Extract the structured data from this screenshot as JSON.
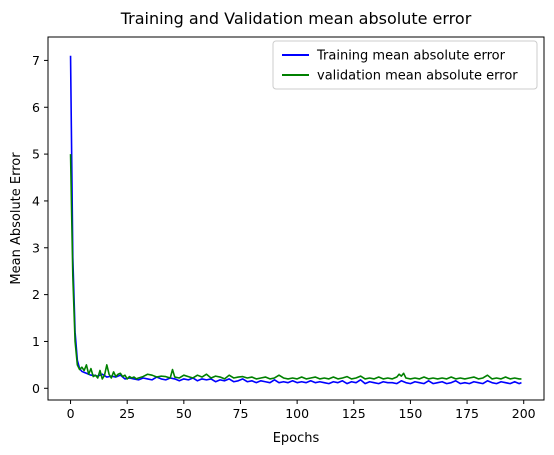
{
  "chart_data": {
    "type": "line",
    "title": "Training and Validation mean absolute error",
    "xlabel": "Epochs",
    "ylabel": "Mean Absolute Error",
    "xlim": [
      -9.95,
      208.95
    ],
    "ylim": [
      -0.25,
      7.5
    ],
    "xticks": [
      0,
      25,
      50,
      75,
      100,
      125,
      150,
      175,
      200
    ],
    "yticks": [
      0,
      1,
      2,
      3,
      4,
      5,
      6,
      7
    ],
    "grid": false,
    "legend": "top-right",
    "series": [
      {
        "name": "Training mean absolute error",
        "color": "#0000ff",
        "x": [
          0,
          1,
          2,
          3,
          4,
          5,
          6,
          7,
          8,
          9,
          10,
          12,
          14,
          16,
          18,
          20,
          22,
          24,
          26,
          28,
          30,
          32,
          34,
          36,
          38,
          40,
          42,
          44,
          46,
          48,
          50,
          52,
          54,
          56,
          58,
          60,
          62,
          64,
          66,
          68,
          70,
          72,
          74,
          76,
          78,
          80,
          82,
          84,
          86,
          88,
          90,
          92,
          94,
          96,
          98,
          100,
          102,
          104,
          106,
          108,
          110,
          112,
          114,
          116,
          118,
          120,
          122,
          124,
          126,
          128,
          130,
          132,
          134,
          136,
          138,
          140,
          142,
          144,
          146,
          148,
          150,
          152,
          154,
          156,
          158,
          160,
          162,
          164,
          166,
          168,
          170,
          172,
          174,
          176,
          178,
          180,
          182,
          184,
          186,
          188,
          190,
          192,
          194,
          196,
          198,
          199
        ],
        "y": [
          7.1,
          2.8,
          1.2,
          0.6,
          0.42,
          0.36,
          0.34,
          0.32,
          0.3,
          0.28,
          0.28,
          0.26,
          0.3,
          0.24,
          0.26,
          0.24,
          0.28,
          0.2,
          0.22,
          0.2,
          0.18,
          0.22,
          0.2,
          0.18,
          0.24,
          0.2,
          0.18,
          0.22,
          0.2,
          0.16,
          0.2,
          0.18,
          0.22,
          0.16,
          0.2,
          0.18,
          0.2,
          0.14,
          0.18,
          0.16,
          0.2,
          0.14,
          0.16,
          0.2,
          0.14,
          0.16,
          0.12,
          0.16,
          0.14,
          0.12,
          0.18,
          0.12,
          0.14,
          0.12,
          0.16,
          0.12,
          0.14,
          0.12,
          0.16,
          0.12,
          0.14,
          0.12,
          0.1,
          0.14,
          0.12,
          0.16,
          0.1,
          0.14,
          0.12,
          0.18,
          0.1,
          0.14,
          0.12,
          0.1,
          0.14,
          0.12,
          0.12,
          0.1,
          0.16,
          0.12,
          0.1,
          0.14,
          0.12,
          0.1,
          0.16,
          0.1,
          0.12,
          0.14,
          0.1,
          0.12,
          0.16,
          0.1,
          0.12,
          0.1,
          0.14,
          0.12,
          0.1,
          0.16,
          0.12,
          0.1,
          0.14,
          0.12,
          0.1,
          0.14,
          0.1,
          0.12
        ]
      },
      {
        "name": "validation mean absolute error",
        "color": "#008000",
        "x": [
          0,
          1,
          2,
          3,
          4,
          5,
          6,
          7,
          8,
          9,
          10,
          11,
          12,
          13,
          14,
          15,
          16,
          17,
          18,
          19,
          20,
          21,
          22,
          23,
          24,
          25,
          26,
          27,
          28,
          29,
          30,
          32,
          34,
          36,
          38,
          40,
          42,
          44,
          45,
          46,
          48,
          50,
          52,
          54,
          56,
          58,
          60,
          62,
          64,
          66,
          68,
          70,
          72,
          74,
          76,
          78,
          80,
          82,
          84,
          86,
          88,
          90,
          92,
          94,
          96,
          98,
          100,
          102,
          104,
          106,
          108,
          110,
          112,
          114,
          116,
          118,
          120,
          122,
          124,
          126,
          128,
          130,
          132,
          134,
          136,
          138,
          140,
          142,
          144,
          145,
          146,
          147,
          148,
          150,
          152,
          154,
          156,
          158,
          160,
          162,
          164,
          166,
          168,
          170,
          172,
          174,
          176,
          178,
          180,
          182,
          184,
          186,
          188,
          190,
          192,
          194,
          196,
          198,
          199
        ],
        "y": [
          5.0,
          2.4,
          1.0,
          0.5,
          0.4,
          0.45,
          0.38,
          0.5,
          0.3,
          0.42,
          0.25,
          0.28,
          0.22,
          0.38,
          0.2,
          0.28,
          0.5,
          0.3,
          0.22,
          0.35,
          0.25,
          0.3,
          0.32,
          0.25,
          0.28,
          0.2,
          0.25,
          0.22,
          0.24,
          0.2,
          0.22,
          0.25,
          0.3,
          0.28,
          0.24,
          0.26,
          0.25,
          0.22,
          0.4,
          0.24,
          0.22,
          0.28,
          0.25,
          0.22,
          0.28,
          0.24,
          0.3,
          0.22,
          0.26,
          0.24,
          0.2,
          0.28,
          0.22,
          0.24,
          0.25,
          0.22,
          0.24,
          0.2,
          0.22,
          0.24,
          0.2,
          0.22,
          0.28,
          0.22,
          0.2,
          0.22,
          0.2,
          0.24,
          0.2,
          0.22,
          0.24,
          0.2,
          0.22,
          0.2,
          0.24,
          0.2,
          0.22,
          0.25,
          0.2,
          0.22,
          0.26,
          0.2,
          0.22,
          0.2,
          0.24,
          0.2,
          0.22,
          0.2,
          0.24,
          0.3,
          0.26,
          0.32,
          0.22,
          0.2,
          0.22,
          0.2,
          0.24,
          0.2,
          0.22,
          0.2,
          0.22,
          0.2,
          0.24,
          0.2,
          0.22,
          0.2,
          0.22,
          0.24,
          0.2,
          0.22,
          0.28,
          0.2,
          0.22,
          0.2,
          0.24,
          0.2,
          0.22,
          0.2,
          0.2
        ]
      }
    ]
  }
}
